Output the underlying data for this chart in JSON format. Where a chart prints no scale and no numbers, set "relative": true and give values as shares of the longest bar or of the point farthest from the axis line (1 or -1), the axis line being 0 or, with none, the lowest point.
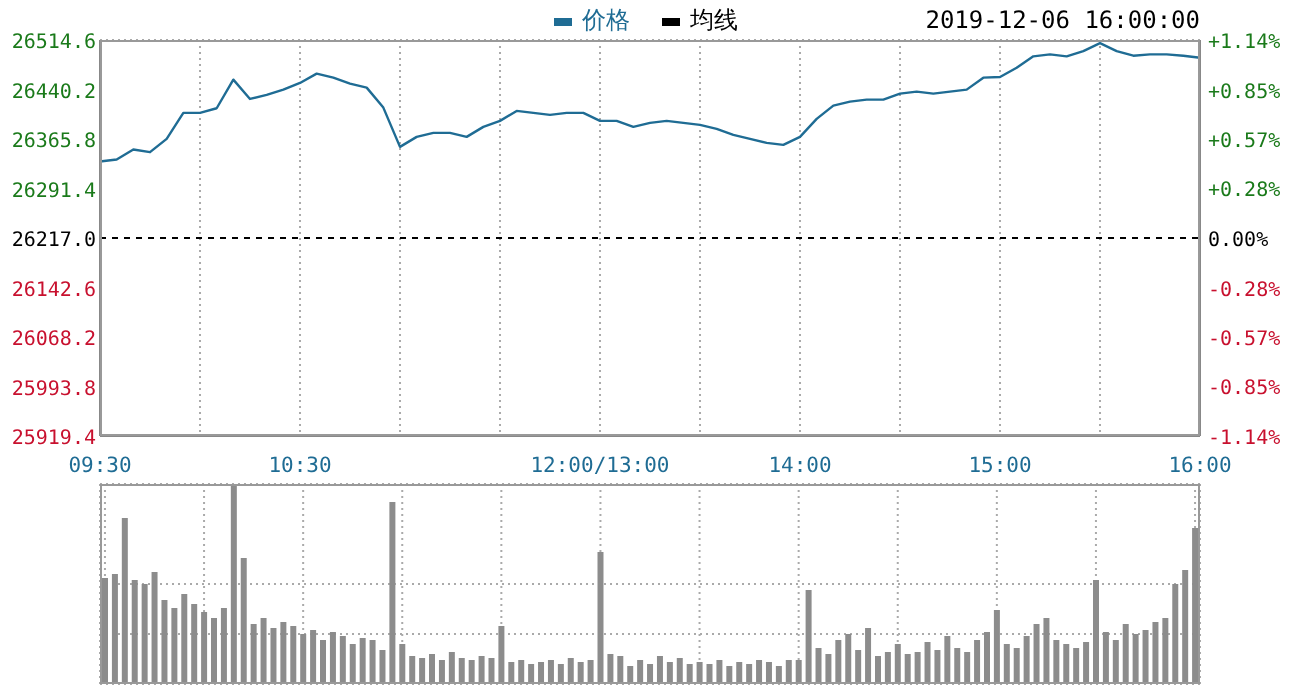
{
  "chart_data": [
    {
      "type": "line",
      "subtitle": "2019-12-06 16:00:00",
      "categories": [
        "09:30",
        null,
        null,
        null,
        null,
        null,
        null,
        null,
        null,
        null,
        null,
        null,
        "10:30",
        null,
        null,
        null,
        null,
        null,
        null,
        null,
        null,
        null,
        null,
        null,
        null,
        null,
        null,
        null,
        null,
        null,
        "12:00/13:00",
        null,
        null,
        null,
        null,
        null,
        null,
        null,
        null,
        null,
        null,
        null,
        "14:00",
        null,
        null,
        null,
        null,
        null,
        null,
        null,
        null,
        null,
        null,
        null,
        "15:00",
        null,
        null,
        null,
        null,
        null,
        null,
        null,
        null,
        null,
        null,
        null,
        "16:00"
      ],
      "series": [
        {
          "name": "价格",
          "color": "#1f6c94",
          "values": [
            26332,
            26335,
            26350,
            26346,
            26366,
            26405,
            26405,
            26412,
            26455,
            26426,
            26432,
            26440,
            26450,
            26464,
            26458,
            26449,
            26443,
            26413,
            26354,
            26369,
            26375,
            26375,
            26369,
            26384,
            26393,
            26408,
            26405,
            26402,
            26405,
            26405,
            26393,
            26393,
            26384,
            26390,
            26393,
            26390,
            26387,
            26381,
            26372,
            26366,
            26360,
            26357,
            26369,
            26396,
            26416,
            26422,
            26425,
            26425,
            26434,
            26437,
            26434,
            26437,
            26440,
            26458,
            26459,
            26473,
            26490,
            26493,
            26490,
            26498,
            26510,
            26498,
            26491,
            26493,
            26493,
            26491,
            26488
          ]
        },
        {
          "name": "均线",
          "color": "#000000",
          "values": [
            null,
            null,
            null,
            null,
            null,
            null,
            null,
            null,
            null,
            null,
            null,
            null,
            null,
            null,
            null,
            null,
            null,
            null,
            null,
            null,
            null,
            null,
            null,
            null,
            null,
            null,
            null,
            null,
            null,
            null,
            null,
            null,
            null,
            null,
            null,
            null,
            null,
            null,
            null,
            null,
            null,
            null,
            null,
            null,
            null,
            null,
            null,
            null,
            null,
            null,
            null,
            null,
            null,
            null,
            null,
            null,
            null,
            null,
            null,
            null,
            null,
            null,
            null,
            null,
            null,
            null,
            null
          ]
        }
      ],
      "ylim": [
        25919.4,
        26514.6
      ],
      "yticks": [
        25919.4,
        25993.8,
        26068.2,
        26142.6,
        {
          "value": 26217,
          "label": "26217.0"
        },
        26291.4,
        26365.8,
        26440.2,
        26514.6
      ],
      "y2lim": [
        -1.135,
        1.135
      ],
      "y2ticks": [
        {
          "value": -1.135,
          "label": "-1.14%"
        },
        {
          "value": -0.851,
          "label": "-0.85%"
        },
        {
          "value": -0.568,
          "label": "-0.57%"
        },
        {
          "value": -0.284,
          "label": "-0.28%"
        },
        {
          "value": 0,
          "label": "0.00%"
        },
        {
          "value": 0.284,
          "label": "+0.28%"
        },
        {
          "value": 0.568,
          "label": "+0.57%"
        },
        {
          "value": 0.851,
          "label": "+0.85%"
        },
        {
          "value": 1.135,
          "label": "+1.14%"
        }
      ],
      "ref_lines": [
        {
          "axis": "y",
          "value": 26217,
          "color": "#000000",
          "line_style": "dashed"
        }
      ],
      "grid": true,
      "legend": "top",
      "marker": "none",
      "line_style": "solid"
    },
    {
      "type": "bar",
      "relative": true,
      "color": "#8c8c8c",
      "grid": true,
      "tick_labels": false,
      "categories": [
        null,
        null,
        null,
        null,
        null,
        null,
        null,
        null,
        null,
        null,
        null,
        null,
        null,
        null,
        null,
        null,
        null,
        null,
        null,
        null,
        null,
        null,
        null,
        null,
        null,
        null,
        null,
        null,
        null,
        null,
        null,
        null,
        null,
        null,
        null,
        null,
        null,
        null,
        null,
        null,
        null,
        null,
        null,
        null,
        null,
        null,
        null,
        null,
        null,
        null,
        null,
        null,
        null,
        null,
        null,
        null,
        null,
        null,
        null,
        null,
        null,
        null,
        null,
        null,
        null,
        null,
        null,
        null,
        null,
        null,
        null,
        null,
        null,
        null,
        null,
        null,
        null,
        null,
        null,
        null,
        null,
        null,
        null,
        null,
        null,
        null,
        null,
        null,
        null,
        null,
        null,
        null,
        null,
        null,
        null,
        null,
        null,
        null,
        null,
        null,
        null,
        null,
        null,
        null,
        null,
        null,
        null,
        null,
        null,
        null,
        null
      ],
      "values": [
        0.53,
        0.55,
        0.83,
        0.52,
        0.5,
        0.56,
        0.42,
        0.38,
        0.45,
        0.4,
        0.36,
        0.33,
        0.38,
        1,
        0.63,
        0.3,
        0.33,
        0.28,
        0.31,
        0.29,
        0.25,
        0.27,
        0.22,
        0.26,
        0.24,
        0.2,
        0.23,
        0.22,
        0.17,
        0.91,
        0.2,
        0.14,
        0.13,
        0.15,
        0.12,
        0.16,
        0.13,
        0.12,
        0.14,
        0.13,
        0.29,
        0.11,
        0.12,
        0.1,
        0.11,
        0.12,
        0.1,
        0.13,
        0.11,
        0.12,
        0.66,
        0.15,
        0.14,
        0.09,
        0.12,
        0.1,
        0.14,
        0.11,
        0.13,
        0.1,
        0.11,
        0.1,
        0.12,
        0.09,
        0.11,
        0.1,
        0.12,
        0.11,
        0.09,
        0.12,
        0.12,
        0.47,
        0.18,
        0.15,
        0.22,
        0.25,
        0.17,
        0.28,
        0.14,
        0.16,
        0.2,
        0.15,
        0.16,
        0.21,
        0.17,
        0.24,
        0.18,
        0.16,
        0.22,
        0.26,
        0.37,
        0.2,
        0.18,
        0.24,
        0.3,
        0.33,
        0.22,
        0.2,
        0.18,
        0.21,
        0.52,
        0.26,
        0.22,
        0.3,
        0.25,
        0.27,
        0.31,
        0.33,
        0.5,
        0.57,
        0.78
      ]
    }
  ]
}
